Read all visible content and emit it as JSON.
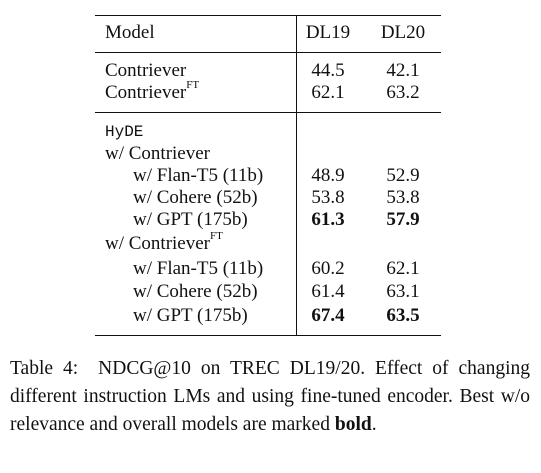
{
  "table": {
    "headers": {
      "model": "Model",
      "dl19": "DL19",
      "dl20": "DL20"
    },
    "baseline_rows": [
      {
        "model": "Contriever",
        "sup": "",
        "dl19": "44.5",
        "dl20": "42.1"
      },
      {
        "model": "Contriever",
        "sup": "FT",
        "dl19": "62.1",
        "dl20": "63.2"
      }
    ],
    "hyde_label": "HyDE",
    "group1": {
      "label": "w/ Contriever",
      "sup": ""
    },
    "group1_rows": [
      {
        "model": "w/ Flan-T5 (11b)",
        "dl19": "48.9",
        "dl20": "52.9",
        "bold": false
      },
      {
        "model": "w/ Cohere (52b)",
        "dl19": "53.8",
        "dl20": "53.8",
        "bold": false
      },
      {
        "model": "w/ GPT (175b)",
        "dl19": "61.3",
        "dl20": "57.9",
        "bold": true
      }
    ],
    "group2": {
      "label": "w/ Contriever",
      "sup": "FT"
    },
    "group2_rows": [
      {
        "model": "w/ Flan-T5 (11b)",
        "dl19": "60.2",
        "dl20": "62.1",
        "bold": false
      },
      {
        "model": "w/ Cohere (52b)",
        "dl19": "61.4",
        "dl20": "63.1",
        "bold": false
      },
      {
        "model": "w/ GPT (175b)",
        "dl19": "67.4",
        "dl20": "63.5",
        "bold": true
      }
    ]
  },
  "caption": {
    "label": "Table 4:",
    "text_before_bold": "NDCG@10 on TREC DL19/20. Effect of changing different instruction LMs and using fine-tuned encoder. Best w/o relevance and overall models are marked ",
    "bold_word": "bold",
    "text_after_bold": "."
  }
}
